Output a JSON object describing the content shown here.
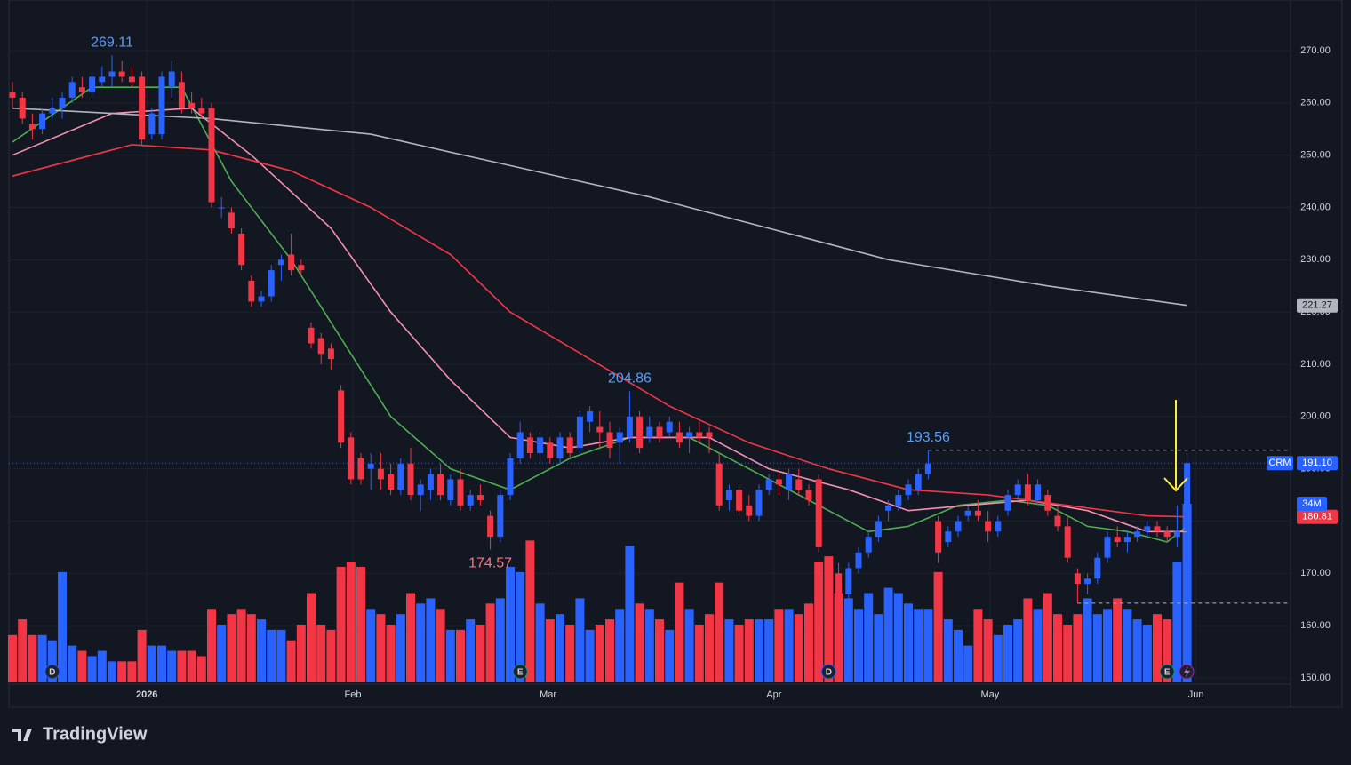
{
  "chart_data": {
    "type": "candlestick",
    "symbol": "CRM",
    "ohlc": [
      [
        262,
        264,
        259,
        261
      ],
      [
        261,
        262,
        256,
        257
      ],
      [
        256,
        258,
        253,
        255
      ],
      [
        255,
        259,
        254,
        258
      ],
      [
        258,
        261,
        257,
        259
      ],
      [
        259,
        262,
        257,
        261
      ],
      [
        261,
        265,
        260,
        264
      ],
      [
        263,
        265,
        261,
        262
      ],
      [
        262,
        266,
        261,
        265
      ],
      [
        264,
        267,
        263,
        265
      ],
      [
        265,
        269.11,
        263,
        266
      ],
      [
        266,
        268,
        264,
        265
      ],
      [
        265,
        267,
        263,
        264
      ],
      [
        265,
        266,
        252,
        253
      ],
      [
        254,
        259,
        253,
        258
      ],
      [
        254,
        266,
        253,
        265
      ],
      [
        263,
        268,
        261,
        266
      ],
      [
        264,
        266,
        258,
        259
      ],
      [
        260,
        262,
        258,
        259
      ],
      [
        259,
        261,
        257,
        258
      ],
      [
        259,
        260,
        240,
        241
      ],
      [
        240,
        242,
        238,
        240
      ],
      [
        239,
        240,
        235,
        236
      ],
      [
        235,
        236,
        228,
        229
      ],
      [
        226,
        227,
        221,
        222
      ],
      [
        222,
        224,
        221,
        223
      ],
      [
        223,
        229,
        222,
        228
      ],
      [
        229,
        231,
        226,
        230
      ],
      [
        231,
        235,
        227,
        228
      ],
      [
        229,
        230,
        227,
        228
      ],
      [
        217,
        218,
        213,
        214
      ],
      [
        215,
        216,
        210,
        212
      ],
      [
        213,
        214,
        209,
        211
      ],
      [
        205,
        206,
        194,
        195
      ],
      [
        196,
        197,
        187,
        188
      ],
      [
        192,
        193,
        187,
        188
      ],
      [
        190,
        193,
        186,
        191
      ],
      [
        190,
        193,
        186,
        188
      ],
      [
        189,
        191,
        185,
        186
      ],
      [
        186,
        192,
        185,
        191
      ],
      [
        191,
        194,
        184,
        185
      ],
      [
        185,
        188,
        182,
        187
      ],
      [
        186,
        190,
        184,
        189
      ],
      [
        189,
        191,
        184,
        185
      ],
      [
        184,
        189,
        183,
        188
      ],
      [
        188,
        190,
        182,
        183
      ],
      [
        183,
        186,
        182,
        185
      ],
      [
        185,
        187,
        183,
        184
      ],
      [
        181,
        182,
        174.57,
        177
      ],
      [
        177,
        186,
        176,
        185
      ],
      [
        185,
        193,
        184,
        192
      ],
      [
        192,
        199,
        191,
        197
      ],
      [
        196,
        197,
        192,
        193
      ],
      [
        193,
        197,
        191,
        196
      ],
      [
        195,
        196,
        191,
        192
      ],
      [
        192,
        197,
        191,
        196
      ],
      [
        196,
        197,
        192,
        193
      ],
      [
        194,
        201,
        193,
        200
      ],
      [
        199,
        202,
        197,
        201
      ],
      [
        198,
        201,
        194,
        197
      ],
      [
        197,
        199,
        192,
        194
      ],
      [
        195,
        198,
        191,
        197
      ],
      [
        196,
        204.86,
        195,
        200
      ],
      [
        200,
        201,
        193,
        194
      ],
      [
        196,
        200,
        195,
        198
      ],
      [
        198,
        199,
        195,
        196
      ],
      [
        197,
        200,
        196,
        199
      ],
      [
        197,
        199,
        194,
        195
      ],
      [
        196,
        198,
        193,
        197
      ],
      [
        197,
        199,
        195,
        196
      ],
      [
        197,
        198,
        193,
        196
      ],
      [
        191,
        193,
        182,
        183
      ],
      [
        184,
        187,
        182,
        186
      ],
      [
        186,
        187,
        181,
        182
      ],
      [
        183,
        185,
        180,
        181
      ],
      [
        181,
        187,
        180,
        186
      ],
      [
        186,
        189,
        185,
        188
      ],
      [
        188,
        189,
        185,
        187
      ],
      [
        186,
        190,
        184,
        189
      ],
      [
        188,
        190,
        185,
        186
      ],
      [
        186,
        187,
        183,
        184
      ],
      [
        188,
        189,
        174,
        175
      ],
      [
        172,
        173,
        165,
        170
      ],
      [
        170,
        172,
        164.5,
        166
      ],
      [
        166,
        172,
        165,
        171
      ],
      [
        171,
        175,
        170,
        174
      ],
      [
        174,
        178,
        173,
        177
      ],
      [
        177,
        181,
        176,
        180
      ],
      [
        182,
        184,
        180,
        183
      ],
      [
        183,
        186,
        182,
        185
      ],
      [
        185,
        188,
        184,
        187
      ],
      [
        186,
        190,
        185,
        189
      ],
      [
        189,
        193.56,
        188,
        191
      ],
      [
        180,
        181,
        172,
        174
      ],
      [
        176,
        179,
        175,
        178
      ],
      [
        178,
        181,
        177,
        180
      ],
      [
        181,
        183,
        180,
        182
      ],
      [
        182,
        184,
        180,
        181
      ],
      [
        180,
        182,
        176,
        178
      ],
      [
        178,
        181,
        177,
        180
      ],
      [
        182,
        186,
        181,
        185
      ],
      [
        185,
        188,
        184,
        187
      ],
      [
        187,
        189,
        183,
        184
      ],
      [
        184,
        188,
        183,
        187
      ],
      [
        185,
        186,
        181,
        182
      ],
      [
        181,
        183,
        178,
        179
      ],
      [
        179,
        181,
        172,
        173
      ],
      [
        170,
        171,
        164.3,
        168
      ],
      [
        168,
        170,
        166,
        169
      ],
      [
        169,
        174,
        168,
        173
      ],
      [
        173,
        178,
        172,
        177
      ],
      [
        177,
        179,
        175,
        176
      ],
      [
        176,
        178,
        174,
        177
      ],
      [
        177,
        179,
        176,
        178
      ],
      [
        178,
        180,
        177,
        179
      ],
      [
        179,
        180,
        177,
        178
      ],
      [
        178,
        179,
        176,
        177
      ],
      [
        177,
        183,
        175,
        178
      ],
      [
        178,
        193,
        177,
        191.1
      ]
    ],
    "up_color": "#2962ff",
    "down_color": "#f23645",
    "volume": [
      9,
      12,
      9,
      9,
      8,
      21,
      7,
      6,
      5,
      6,
      4,
      4,
      4,
      10,
      7,
      7,
      6,
      6,
      6,
      5,
      14,
      11,
      13,
      14,
      13,
      12,
      10,
      10,
      8,
      11,
      17,
      11,
      10,
      22,
      23,
      22,
      14,
      13,
      11,
      13,
      17,
      15,
      16,
      14,
      10,
      10,
      12,
      11,
      15,
      16,
      22,
      21,
      27,
      15,
      12,
      13,
      11,
      16,
      10,
      11,
      12,
      14,
      26,
      15,
      14,
      12,
      10,
      19,
      14,
      11,
      13,
      19,
      12,
      11,
      12,
      12,
      12,
      14,
      14,
      13,
      15,
      23,
      24,
      17,
      16,
      14,
      17,
      13,
      18,
      17,
      15,
      14,
      14,
      21,
      12,
      10,
      7,
      14,
      12,
      9,
      11,
      12,
      16,
      14,
      17,
      13,
      11,
      13,
      16,
      13,
      14,
      16,
      14,
      12,
      11,
      13,
      12,
      23,
      34
    ],
    "volume_ylim": [
      0,
      68
    ],
    "volume_label": "34M",
    "ylim": [
      144.56,
      279.69
    ],
    "yticks": [
      {
        "value": 150,
        "label": "150.00"
      },
      {
        "value": 160,
        "label": "160.00"
      },
      {
        "value": 170,
        "label": "170.00"
      },
      {
        "value": 180,
        "label": "180.00"
      },
      {
        "value": 190,
        "label": "190.00"
      },
      {
        "value": 200,
        "label": "200.00"
      },
      {
        "value": 210,
        "label": "210.00"
      },
      {
        "value": 220,
        "label": "220.00"
      },
      {
        "value": 230,
        "label": "230.00"
      },
      {
        "value": 240,
        "label": "240.00"
      },
      {
        "value": 250,
        "label": "250.00"
      },
      {
        "value": 260,
        "label": "260.00"
      },
      {
        "value": 270,
        "label": "270.00"
      }
    ],
    "xticks": [
      {
        "value": 13.5,
        "label": "2026"
      },
      {
        "value": 34.2,
        "label": "Feb"
      },
      {
        "value": 53.8,
        "label": "Mar"
      },
      {
        "value": 76.5,
        "label": "Apr"
      },
      {
        "value": 98.2,
        "label": "May"
      },
      {
        "value": 118.9,
        "label": "Jun"
      }
    ],
    "last_price_label": "191.10",
    "lines": [
      {
        "color": "#4caf50",
        "x": [
          0,
          8,
          17,
          22,
          28,
          33,
          38,
          44,
          50,
          56,
          62,
          68,
          74,
          78,
          82,
          86,
          90,
          95,
          100,
          104,
          108,
          112,
          116,
          118
        ],
        "values": [
          252.5,
          263,
          263,
          245,
          230,
          215,
          200,
          190,
          186,
          192,
          196,
          196,
          190,
          186,
          182,
          178,
          179,
          183,
          184,
          183,
          179,
          178,
          176,
          179
        ]
      },
      {
        "color": "#f48fb1",
        "x": [
          0,
          10,
          18,
          24,
          32,
          38,
          44,
          50,
          56,
          62,
          70,
          76,
          84,
          90,
          96,
          102,
          108,
          114,
          118
        ],
        "values": [
          250,
          258,
          259,
          250,
          236,
          220,
          207,
          196,
          194,
          196,
          196,
          190,
          186,
          182,
          183,
          184,
          182,
          178,
          178
        ]
      },
      {
        "color": "#f23645",
        "x": [
          0,
          12,
          20,
          28,
          36,
          44,
          50,
          58,
          66,
          74,
          82,
          90,
          98,
          106,
          114,
          118
        ],
        "values": [
          246,
          252,
          251,
          247,
          240,
          231,
          220,
          211,
          202,
          195,
          190,
          186,
          185,
          183,
          181,
          180.81
        ],
        "last_label": "180.81"
      },
      {
        "color": "#b2b5be",
        "x": [
          0,
          20,
          36,
          50,
          64,
          76,
          88,
          104,
          118
        ],
        "values": [
          259,
          257,
          254,
          248,
          242,
          236,
          230,
          225,
          221.27
        ],
        "last_label": "221.27"
      }
    ],
    "annotations": [
      {
        "label": "269.11",
        "candle": 10,
        "at": "high"
      },
      {
        "label": "204.86",
        "candle": 62,
        "at": "high"
      },
      {
        "label": "193.56",
        "candle": 92,
        "at": "high"
      },
      {
        "label": "174.57",
        "candle": 48,
        "at": "low"
      }
    ],
    "levels": [
      {
        "candle": 92,
        "at": "high"
      },
      {
        "candle": 107,
        "at": "low"
      }
    ],
    "events": [
      {
        "label": "D",
        "candle": 4
      },
      {
        "label": "E",
        "candle": 51
      },
      {
        "label": "D",
        "candle": 82
      },
      {
        "label": "E",
        "candle": 116
      }
    ]
  },
  "footer": {
    "brand": "TradingView"
  }
}
